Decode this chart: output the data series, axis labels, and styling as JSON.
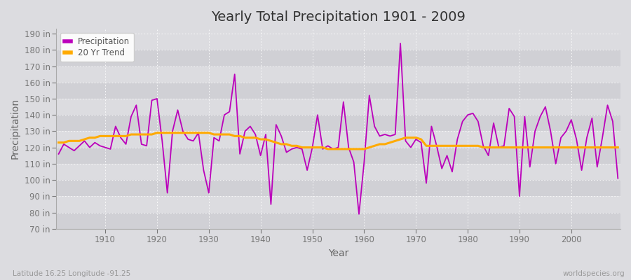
{
  "title": "Yearly Total Precipitation 1901 - 2009",
  "xlabel": "Year",
  "ylabel": "Precipitation",
  "subtitle_left": "Latitude 16.25 Longitude -91.25",
  "subtitle_right": "worldspecies.org",
  "years": [
    1901,
    1902,
    1903,
    1904,
    1905,
    1906,
    1907,
    1908,
    1909,
    1910,
    1911,
    1912,
    1913,
    1914,
    1915,
    1916,
    1917,
    1918,
    1919,
    1920,
    1921,
    1922,
    1923,
    1924,
    1925,
    1926,
    1927,
    1928,
    1929,
    1930,
    1931,
    1932,
    1933,
    1934,
    1935,
    1936,
    1937,
    1938,
    1939,
    1940,
    1941,
    1942,
    1943,
    1944,
    1945,
    1946,
    1947,
    1948,
    1949,
    1950,
    1951,
    1952,
    1953,
    1954,
    1955,
    1956,
    1957,
    1958,
    1959,
    1960,
    1961,
    1962,
    1963,
    1964,
    1965,
    1966,
    1967,
    1968,
    1969,
    1970,
    1971,
    1972,
    1973,
    1974,
    1975,
    1976,
    1977,
    1978,
    1979,
    1980,
    1981,
    1982,
    1983,
    1984,
    1985,
    1986,
    1987,
    1988,
    1989,
    1990,
    1991,
    1992,
    1993,
    1994,
    1995,
    1996,
    1997,
    1998,
    1999,
    2000,
    2001,
    2002,
    2003,
    2004,
    2005,
    2006,
    2007,
    2008,
    2009
  ],
  "precip": [
    116,
    122,
    120,
    118,
    121,
    124,
    120,
    123,
    121,
    120,
    119,
    133,
    126,
    122,
    139,
    146,
    122,
    121,
    149,
    150,
    124,
    92,
    130,
    143,
    130,
    125,
    124,
    129,
    106,
    92,
    126,
    124,
    140,
    142,
    165,
    116,
    130,
    133,
    128,
    115,
    128,
    85,
    134,
    127,
    117,
    119,
    120,
    119,
    106,
    120,
    140,
    119,
    121,
    119,
    120,
    148,
    120,
    111,
    79,
    111,
    152,
    133,
    127,
    128,
    127,
    128,
    184,
    124,
    120,
    125,
    123,
    98,
    133,
    121,
    107,
    115,
    105,
    125,
    136,
    140,
    141,
    136,
    121,
    115,
    135,
    120,
    121,
    144,
    139,
    90,
    139,
    108,
    130,
    139,
    145,
    130,
    110,
    126,
    130,
    137,
    125,
    106,
    126,
    138,
    108,
    126,
    146,
    136,
    101
  ],
  "trend": [
    123,
    123,
    124,
    124,
    124,
    125,
    126,
    126,
    127,
    127,
    127,
    127,
    127,
    127,
    128,
    128,
    128,
    128,
    128,
    129,
    129,
    129,
    129,
    129,
    129,
    129,
    129,
    129,
    129,
    129,
    128,
    128,
    128,
    128,
    127,
    127,
    126,
    126,
    126,
    125,
    125,
    124,
    123,
    122,
    122,
    121,
    121,
    120,
    120,
    120,
    120,
    120,
    119,
    119,
    119,
    119,
    119,
    119,
    119,
    119,
    120,
    121,
    122,
    122,
    123,
    124,
    125,
    126,
    126,
    126,
    125,
    121,
    121,
    121,
    121,
    121,
    121,
    121,
    121,
    121,
    121,
    121,
    120,
    120,
    120,
    120,
    120,
    120,
    120,
    120,
    120,
    120,
    120,
    120,
    120,
    120,
    120,
    120,
    120,
    120,
    120,
    120,
    120,
    120,
    120,
    120,
    120,
    120,
    120
  ],
  "precip_color": "#bb00bb",
  "trend_color": "#ffaa00",
  "bg_color": "#dcdce0",
  "plot_bg_light": "#dcdce0",
  "plot_bg_dark": "#d0d0d5",
  "grid_color": "#ffffff",
  "ylim": [
    70,
    193
  ],
  "yticks": [
    70,
    80,
    90,
    100,
    110,
    120,
    130,
    140,
    150,
    160,
    170,
    180,
    190
  ],
  "xlim_left": 1901,
  "xlim_right": 2009,
  "xticks": [
    1910,
    1920,
    1930,
    1940,
    1950,
    1960,
    1970,
    1980,
    1990,
    2000
  ]
}
